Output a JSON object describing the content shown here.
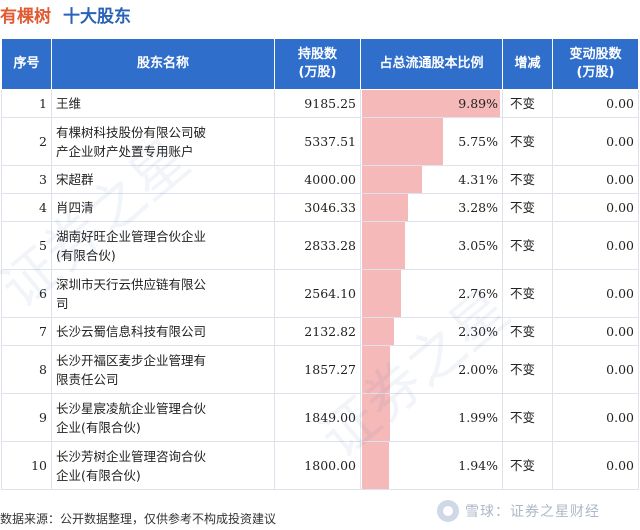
{
  "header": {
    "company": "有棵树",
    "subtitle": "十大股东"
  },
  "table": {
    "columns": [
      "序号",
      "股东名称",
      "持股数\n(万股)",
      "占总流通股本比例",
      "增减",
      "变动股数\n(万股)"
    ],
    "col_rank": "序号",
    "col_name": "股东名称",
    "col_shares_1": "持股数",
    "col_shares_2": "(万股)",
    "col_ratio": "占总流通股本比例",
    "col_change": "增减",
    "col_delta_1": "变动股数",
    "col_delta_2": "(万股)"
  },
  "chart_data": {
    "type": "table",
    "rows": [
      {
        "rank": "1",
        "name": "王维",
        "shares": "9185.25",
        "ratio": 9.89,
        "ratio_text": "9.89%",
        "change": "不变",
        "delta": "0.00"
      },
      {
        "rank": "2",
        "name": "有棵树科技股份有限公司破产企业财产处置专用账户",
        "name_l1": "有棵树科技股份有限公司破",
        "name_l2": "产企业财产处置专用账户",
        "shares": "5337.51",
        "ratio": 5.75,
        "ratio_text": "5.75%",
        "change": "不变",
        "delta": "0.00"
      },
      {
        "rank": "3",
        "name": "宋超群",
        "shares": "4000.00",
        "ratio": 4.31,
        "ratio_text": "4.31%",
        "change": "不变",
        "delta": "0.00"
      },
      {
        "rank": "4",
        "name": "肖四清",
        "shares": "3046.33",
        "ratio": 3.28,
        "ratio_text": "3.28%",
        "change": "不变",
        "delta": "0.00"
      },
      {
        "rank": "5",
        "name": "湖南好旺企业管理合伙企业(有限合伙)",
        "name_l1": "湖南好旺企业管理合伙企业",
        "name_l2": "(有限合伙)",
        "shares": "2833.28",
        "ratio": 3.05,
        "ratio_text": "3.05%",
        "change": "不变",
        "delta": "0.00"
      },
      {
        "rank": "6",
        "name": "深圳市天行云供应链有限公司",
        "name_l1": "深圳市天行云供应链有限公",
        "name_l2": "司",
        "shares": "2564.10",
        "ratio": 2.76,
        "ratio_text": "2.76%",
        "change": "不变",
        "delta": "0.00"
      },
      {
        "rank": "7",
        "name": "长沙云蜀信息科技有限公司",
        "shares": "2132.82",
        "ratio": 2.3,
        "ratio_text": "2.30%",
        "change": "不变",
        "delta": "0.00"
      },
      {
        "rank": "8",
        "name": "长沙开福区麦步企业管理有限责任公司",
        "name_l1": "长沙开福区麦步企业管理有",
        "name_l2": "限责任公司",
        "shares": "1857.27",
        "ratio": 2.0,
        "ratio_text": "2.00%",
        "change": "不变",
        "delta": "0.00"
      },
      {
        "rank": "9",
        "name": "长沙星宸凌航企业管理合伙企业(有限合伙)",
        "name_l1": "长沙星宸凌航企业管理合伙",
        "name_l2": "企业(有限合伙)",
        "shares": "1849.00",
        "ratio": 1.99,
        "ratio_text": "1.99%",
        "change": "不变",
        "delta": "0.00"
      },
      {
        "rank": "10",
        "name": "长沙芳树企业管理咨询合伙企业(有限合伙)",
        "name_l1": "长沙芳树企业管理咨询合伙",
        "name_l2": "企业(有限合伙)",
        "shares": "1800.00",
        "ratio": 1.94,
        "ratio_text": "1.94%",
        "change": "不变",
        "delta": "0.00"
      }
    ],
    "ratio_max": 10.0,
    "bar_color": "#f6b9b9"
  },
  "footer": {
    "source": "数据来源：公开数据整理，仅供参考不构成投资建议",
    "brand": "雪球：证券之星财经"
  },
  "colors": {
    "header_bg": "#2f6fcb",
    "company_color": "#e05a33",
    "subtitle_color": "#2a62b8"
  },
  "watermark": "证券之星"
}
